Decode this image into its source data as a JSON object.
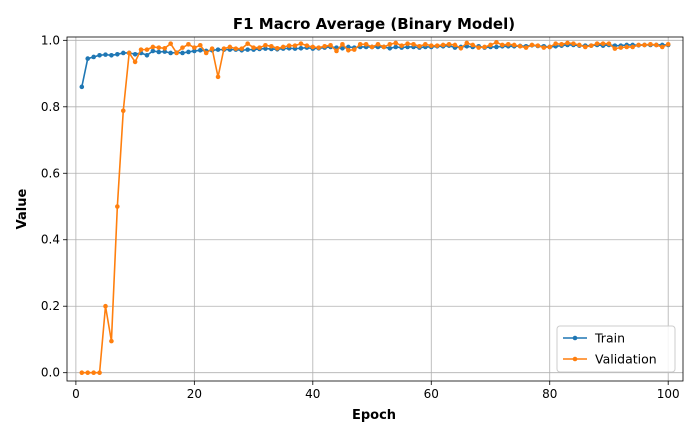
{
  "chart_data": {
    "type": "line",
    "title": "F1 Macro Average (Binary Model)",
    "xlabel": "Epoch",
    "ylabel": "Value",
    "xlim": [
      -1.5,
      102.5
    ],
    "ylim": [
      -0.025,
      1.01
    ],
    "xticks": [
      0,
      20,
      40,
      60,
      80,
      100
    ],
    "yticks": [
      0.0,
      0.2,
      0.4,
      0.6,
      0.8,
      1.0
    ],
    "xtick_labels": [
      "0",
      "20",
      "40",
      "60",
      "80",
      "100"
    ],
    "ytick_labels": [
      "0.0",
      "0.2",
      "0.4",
      "0.6",
      "0.8",
      "1.0"
    ],
    "grid": true,
    "legend_position": "lower-right",
    "x": [
      1,
      2,
      3,
      4,
      5,
      6,
      7,
      8,
      9,
      10,
      11,
      12,
      13,
      14,
      15,
      16,
      17,
      18,
      19,
      20,
      21,
      22,
      23,
      24,
      25,
      26,
      27,
      28,
      29,
      30,
      31,
      32,
      33,
      34,
      35,
      36,
      37,
      38,
      39,
      40,
      41,
      42,
      43,
      44,
      45,
      46,
      47,
      48,
      49,
      50,
      51,
      52,
      53,
      54,
      55,
      56,
      57,
      58,
      59,
      60,
      61,
      62,
      63,
      64,
      65,
      66,
      67,
      68,
      69,
      70,
      71,
      72,
      73,
      74,
      75,
      76,
      77,
      78,
      79,
      80,
      81,
      82,
      83,
      84,
      85,
      86,
      87,
      88,
      89,
      90,
      91,
      92,
      93,
      94,
      95,
      96,
      97,
      98,
      99,
      100
    ],
    "series": [
      {
        "name": "Train",
        "color": "#1f77b4",
        "values": [
          0.86,
          0.945,
          0.95,
          0.955,
          0.957,
          0.955,
          0.958,
          0.962,
          0.962,
          0.958,
          0.962,
          0.955,
          0.968,
          0.965,
          0.966,
          0.962,
          0.963,
          0.962,
          0.965,
          0.968,
          0.97,
          0.968,
          0.97,
          0.972,
          0.972,
          0.972,
          0.972,
          0.97,
          0.972,
          0.972,
          0.974,
          0.975,
          0.974,
          0.973,
          0.975,
          0.976,
          0.975,
          0.976,
          0.978,
          0.975,
          0.976,
          0.978,
          0.98,
          0.978,
          0.976,
          0.98,
          0.978,
          0.98,
          0.98,
          0.98,
          0.98,
          0.98,
          0.976,
          0.98,
          0.978,
          0.98,
          0.98,
          0.978,
          0.98,
          0.98,
          0.982,
          0.982,
          0.984,
          0.978,
          0.98,
          0.982,
          0.98,
          0.982,
          0.978,
          0.98,
          0.98,
          0.982,
          0.982,
          0.982,
          0.983,
          0.982,
          0.985,
          0.983,
          0.982,
          0.98,
          0.982,
          0.984,
          0.986,
          0.986,
          0.984,
          0.984,
          0.984,
          0.986,
          0.984,
          0.986,
          0.984,
          0.984,
          0.986,
          0.986,
          0.985,
          0.986,
          0.986,
          0.986,
          0.986,
          0.986
        ]
      },
      {
        "name": "Validation",
        "color": "#ff7f0e",
        "values": [
          0.0,
          0.0,
          0.0,
          0.0,
          0.2,
          0.095,
          0.5,
          0.788,
          0.962,
          0.935,
          0.972,
          0.972,
          0.98,
          0.978,
          0.976,
          0.99,
          0.962,
          0.978,
          0.988,
          0.978,
          0.985,
          0.962,
          0.975,
          0.89,
          0.975,
          0.98,
          0.975,
          0.975,
          0.99,
          0.978,
          0.978,
          0.985,
          0.982,
          0.976,
          0.98,
          0.984,
          0.984,
          0.99,
          0.984,
          0.98,
          0.978,
          0.982,
          0.985,
          0.968,
          0.988,
          0.97,
          0.972,
          0.988,
          0.988,
          0.98,
          0.988,
          0.98,
          0.988,
          0.992,
          0.984,
          0.99,
          0.988,
          0.982,
          0.988,
          0.984,
          0.984,
          0.986,
          0.988,
          0.986,
          0.976,
          0.992,
          0.986,
          0.978,
          0.98,
          0.986,
          0.994,
          0.986,
          0.988,
          0.986,
          0.982,
          0.978,
          0.986,
          0.984,
          0.978,
          0.98,
          0.99,
          0.988,
          0.992,
          0.99,
          0.986,
          0.98,
          0.984,
          0.99,
          0.99,
          0.99,
          0.975,
          0.978,
          0.98,
          0.98,
          0.986,
          0.986,
          0.988,
          0.986,
          0.98,
          0.988
        ]
      }
    ]
  }
}
